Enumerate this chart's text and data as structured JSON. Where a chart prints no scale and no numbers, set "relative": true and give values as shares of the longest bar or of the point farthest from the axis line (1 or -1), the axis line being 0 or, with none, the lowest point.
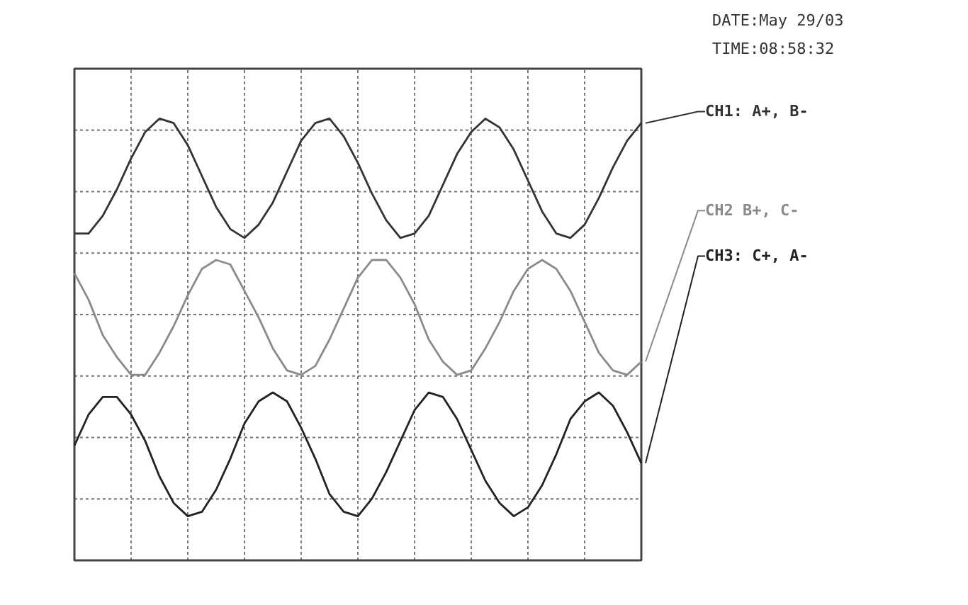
{
  "chart_data": {
    "type": "line",
    "relative": true,
    "grid": true,
    "legend": "right",
    "marker": "none",
    "line_style": "solid",
    "categories": [
      null,
      null,
      null,
      null,
      null,
      null,
      null,
      null,
      null,
      null,
      null,
      null,
      null,
      null,
      null,
      null,
      null,
      null,
      null,
      null,
      null,
      null,
      null,
      null,
      null,
      null,
      null,
      null,
      null,
      null,
      null,
      null,
      null,
      null,
      null,
      null,
      null,
      null,
      null,
      null,
      null
    ],
    "series": [
      {
        "name": "CH1: A+, B-",
        "color": "#333333",
        "values": [
          0.74,
          0.74,
          0.78,
          0.84,
          0.91,
          0.97,
          1.0,
          0.99,
          0.94,
          0.87,
          0.8,
          0.75,
          0.73,
          0.76,
          0.81,
          0.88,
          0.95,
          0.99,
          1.0,
          0.96,
          0.9,
          0.83,
          0.77,
          0.73,
          0.74,
          0.78,
          0.85,
          0.92,
          0.97,
          1.0,
          0.98,
          0.93,
          0.86,
          0.79,
          0.74,
          0.73,
          0.76,
          0.82,
          0.89,
          0.95,
          0.99
        ]
      },
      {
        "name": "CH2 B+, C-",
        "color": "#8a8a8a",
        "values": [
          0.65,
          0.59,
          0.51,
          0.46,
          0.42,
          0.42,
          0.47,
          0.53,
          0.6,
          0.66,
          0.68,
          0.67,
          0.61,
          0.55,
          0.48,
          0.43,
          0.42,
          0.44,
          0.5,
          0.57,
          0.64,
          0.68,
          0.68,
          0.64,
          0.58,
          0.5,
          0.45,
          0.42,
          0.43,
          0.48,
          0.54,
          0.61,
          0.66,
          0.68,
          0.66,
          0.61,
          0.54,
          0.47,
          0.43,
          0.42,
          0.45
        ]
      },
      {
        "name": "CH3: C+, A-",
        "color": "#222222",
        "values": [
          0.26,
          0.33,
          0.37,
          0.37,
          0.33,
          0.27,
          0.19,
          0.13,
          0.1,
          0.11,
          0.16,
          0.23,
          0.31,
          0.36,
          0.38,
          0.36,
          0.3,
          0.23,
          0.15,
          0.11,
          0.1,
          0.14,
          0.2,
          0.27,
          0.34,
          0.38,
          0.37,
          0.32,
          0.25,
          0.18,
          0.13,
          0.1,
          0.12,
          0.17,
          0.24,
          0.32,
          0.36,
          0.38,
          0.35,
          0.29,
          0.22
        ]
      }
    ],
    "annotations": [
      "DATE:May 29/03",
      "TIME:08:58:32"
    ]
  }
}
